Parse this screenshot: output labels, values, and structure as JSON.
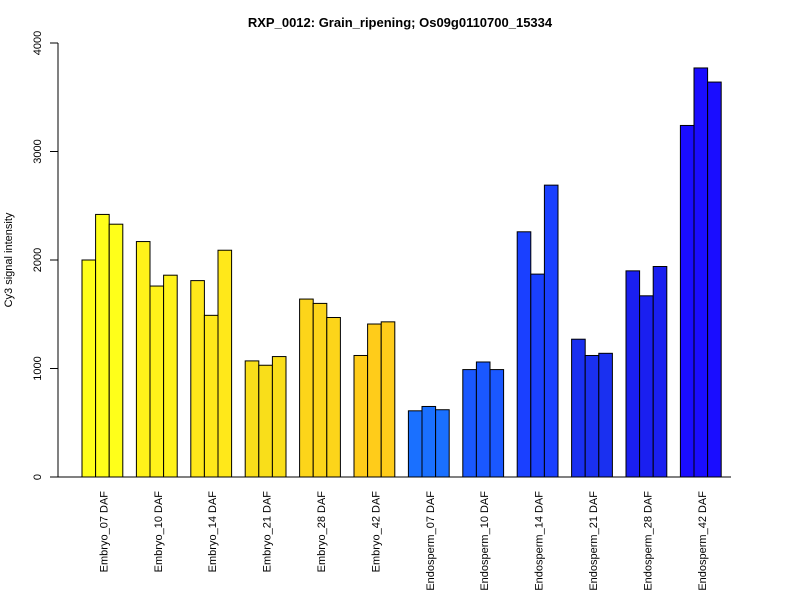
{
  "chart_data": {
    "type": "bar",
    "title": "RXP_0012: Grain_ripening; Os09g0110700_15334",
    "xlabel": "",
    "ylabel": "Cy3 signal intensity",
    "ylim": [
      0,
      4000
    ],
    "yticks": [
      0,
      1000,
      2000,
      3000,
      4000
    ],
    "grid": false,
    "categories": [
      "Embryo_07 DAF",
      "Embryo_10 DAF",
      "Embryo_14 DAF",
      "Embryo_21 DAF",
      "Embryo_28 DAF",
      "Embryo_42 DAF",
      "Endosperm_07 DAF",
      "Endosperm_10 DAF",
      "Endosperm_14 DAF",
      "Endosperm_21 DAF",
      "Endosperm_28 DAF",
      "Endosperm_42 DAF"
    ],
    "values": [
      [
        2000,
        2420,
        2330
      ],
      [
        2170,
        1760,
        1860
      ],
      [
        1810,
        1490,
        2090
      ],
      [
        1070,
        1030,
        1110
      ],
      [
        1640,
        1600,
        1470
      ],
      [
        1120,
        1410,
        1430
      ],
      [
        610,
        650,
        620
      ],
      [
        990,
        1060,
        990
      ],
      [
        2260,
        1870,
        2690
      ],
      [
        1270,
        1120,
        1140
      ],
      [
        1900,
        1670,
        1940
      ],
      [
        3240,
        3770,
        3640
      ]
    ],
    "colors": [
      "#ffff1a",
      "#fff21a",
      "#ffe81a",
      "#f9de1a",
      "#fcd51a",
      "#ffcc1a",
      "#1a70ff",
      "#1a58ff",
      "#1a40ff",
      "#1a30f0",
      "#1a1ff0",
      "#1a0dff"
    ]
  }
}
